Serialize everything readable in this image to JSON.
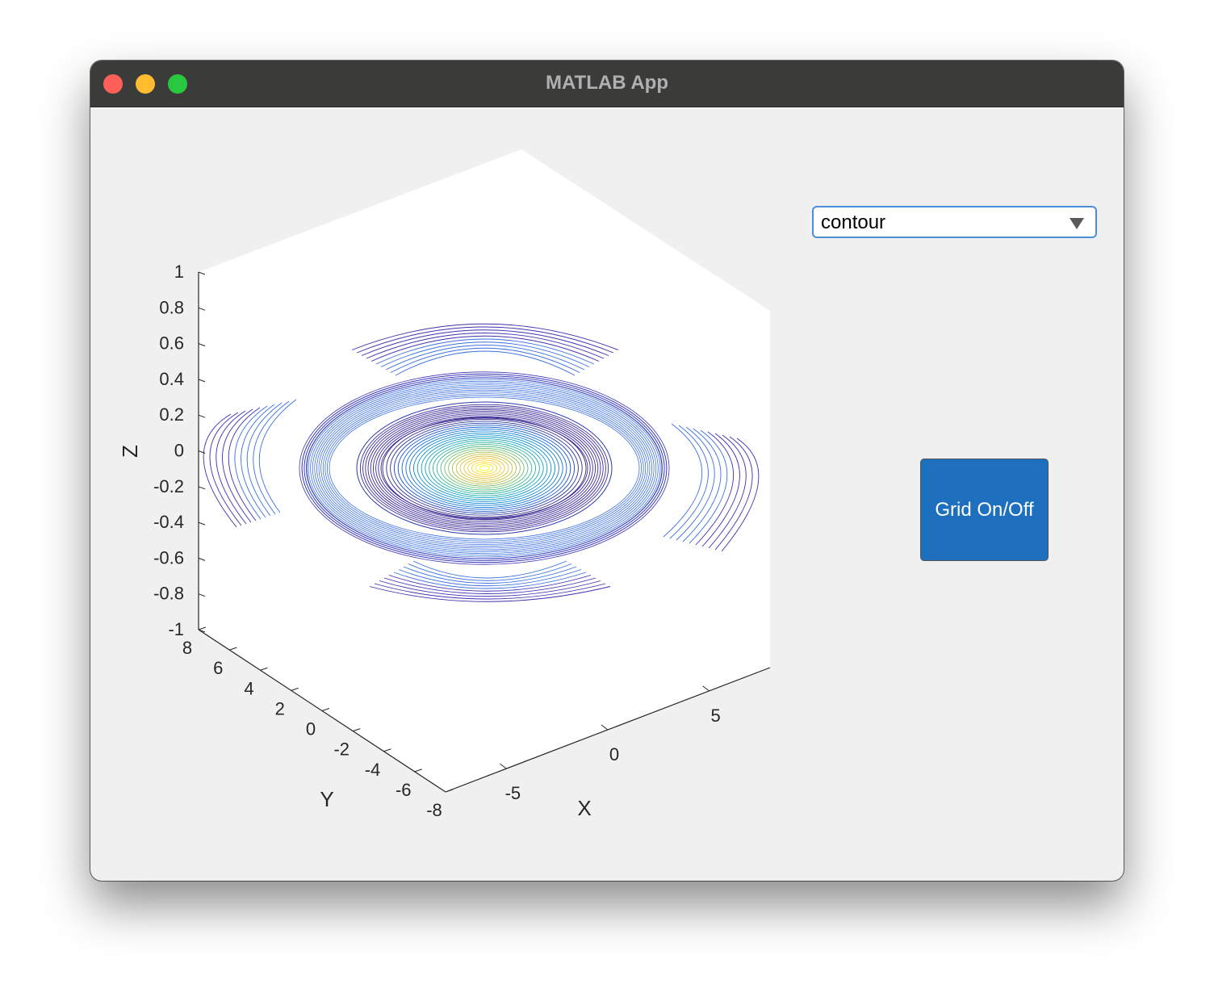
{
  "window": {
    "title": "MATLAB App"
  },
  "controls": {
    "plot_type_dropdown": {
      "selected": "contour"
    },
    "grid_button_label": "Grid On/Off"
  },
  "colors": {
    "titlebar": "#3b3b3a",
    "window_bg": "#f0f0f0",
    "button_bg": "#1f6fbf",
    "dropdown_border": "#4a90d9",
    "close": "#fe5f57",
    "minimize": "#febc2e",
    "maximize": "#28c840"
  },
  "chart_data": {
    "type": "contour",
    "title": "",
    "xlabel": "X",
    "ylabel": "Y",
    "zlabel": "Z",
    "xlim": [
      -8,
      8
    ],
    "ylim": [
      -8,
      8
    ],
    "zlim": [
      -1,
      1
    ],
    "x_ticks": [
      "-5",
      "0",
      "5"
    ],
    "y_ticks": [
      "-8",
      "-6",
      "-4",
      "-2",
      "0",
      "2",
      "4",
      "6",
      "8"
    ],
    "z_ticks": [
      "-1",
      "-0.8",
      "-0.6",
      "-0.4",
      "-0.2",
      "0",
      "0.2",
      "0.4",
      "0.6",
      "0.8",
      "1"
    ],
    "grid": false,
    "colormap": "parula",
    "view": "3-D",
    "surface": "z = sin(r)/r",
    "contour_peak": 1.0
  }
}
